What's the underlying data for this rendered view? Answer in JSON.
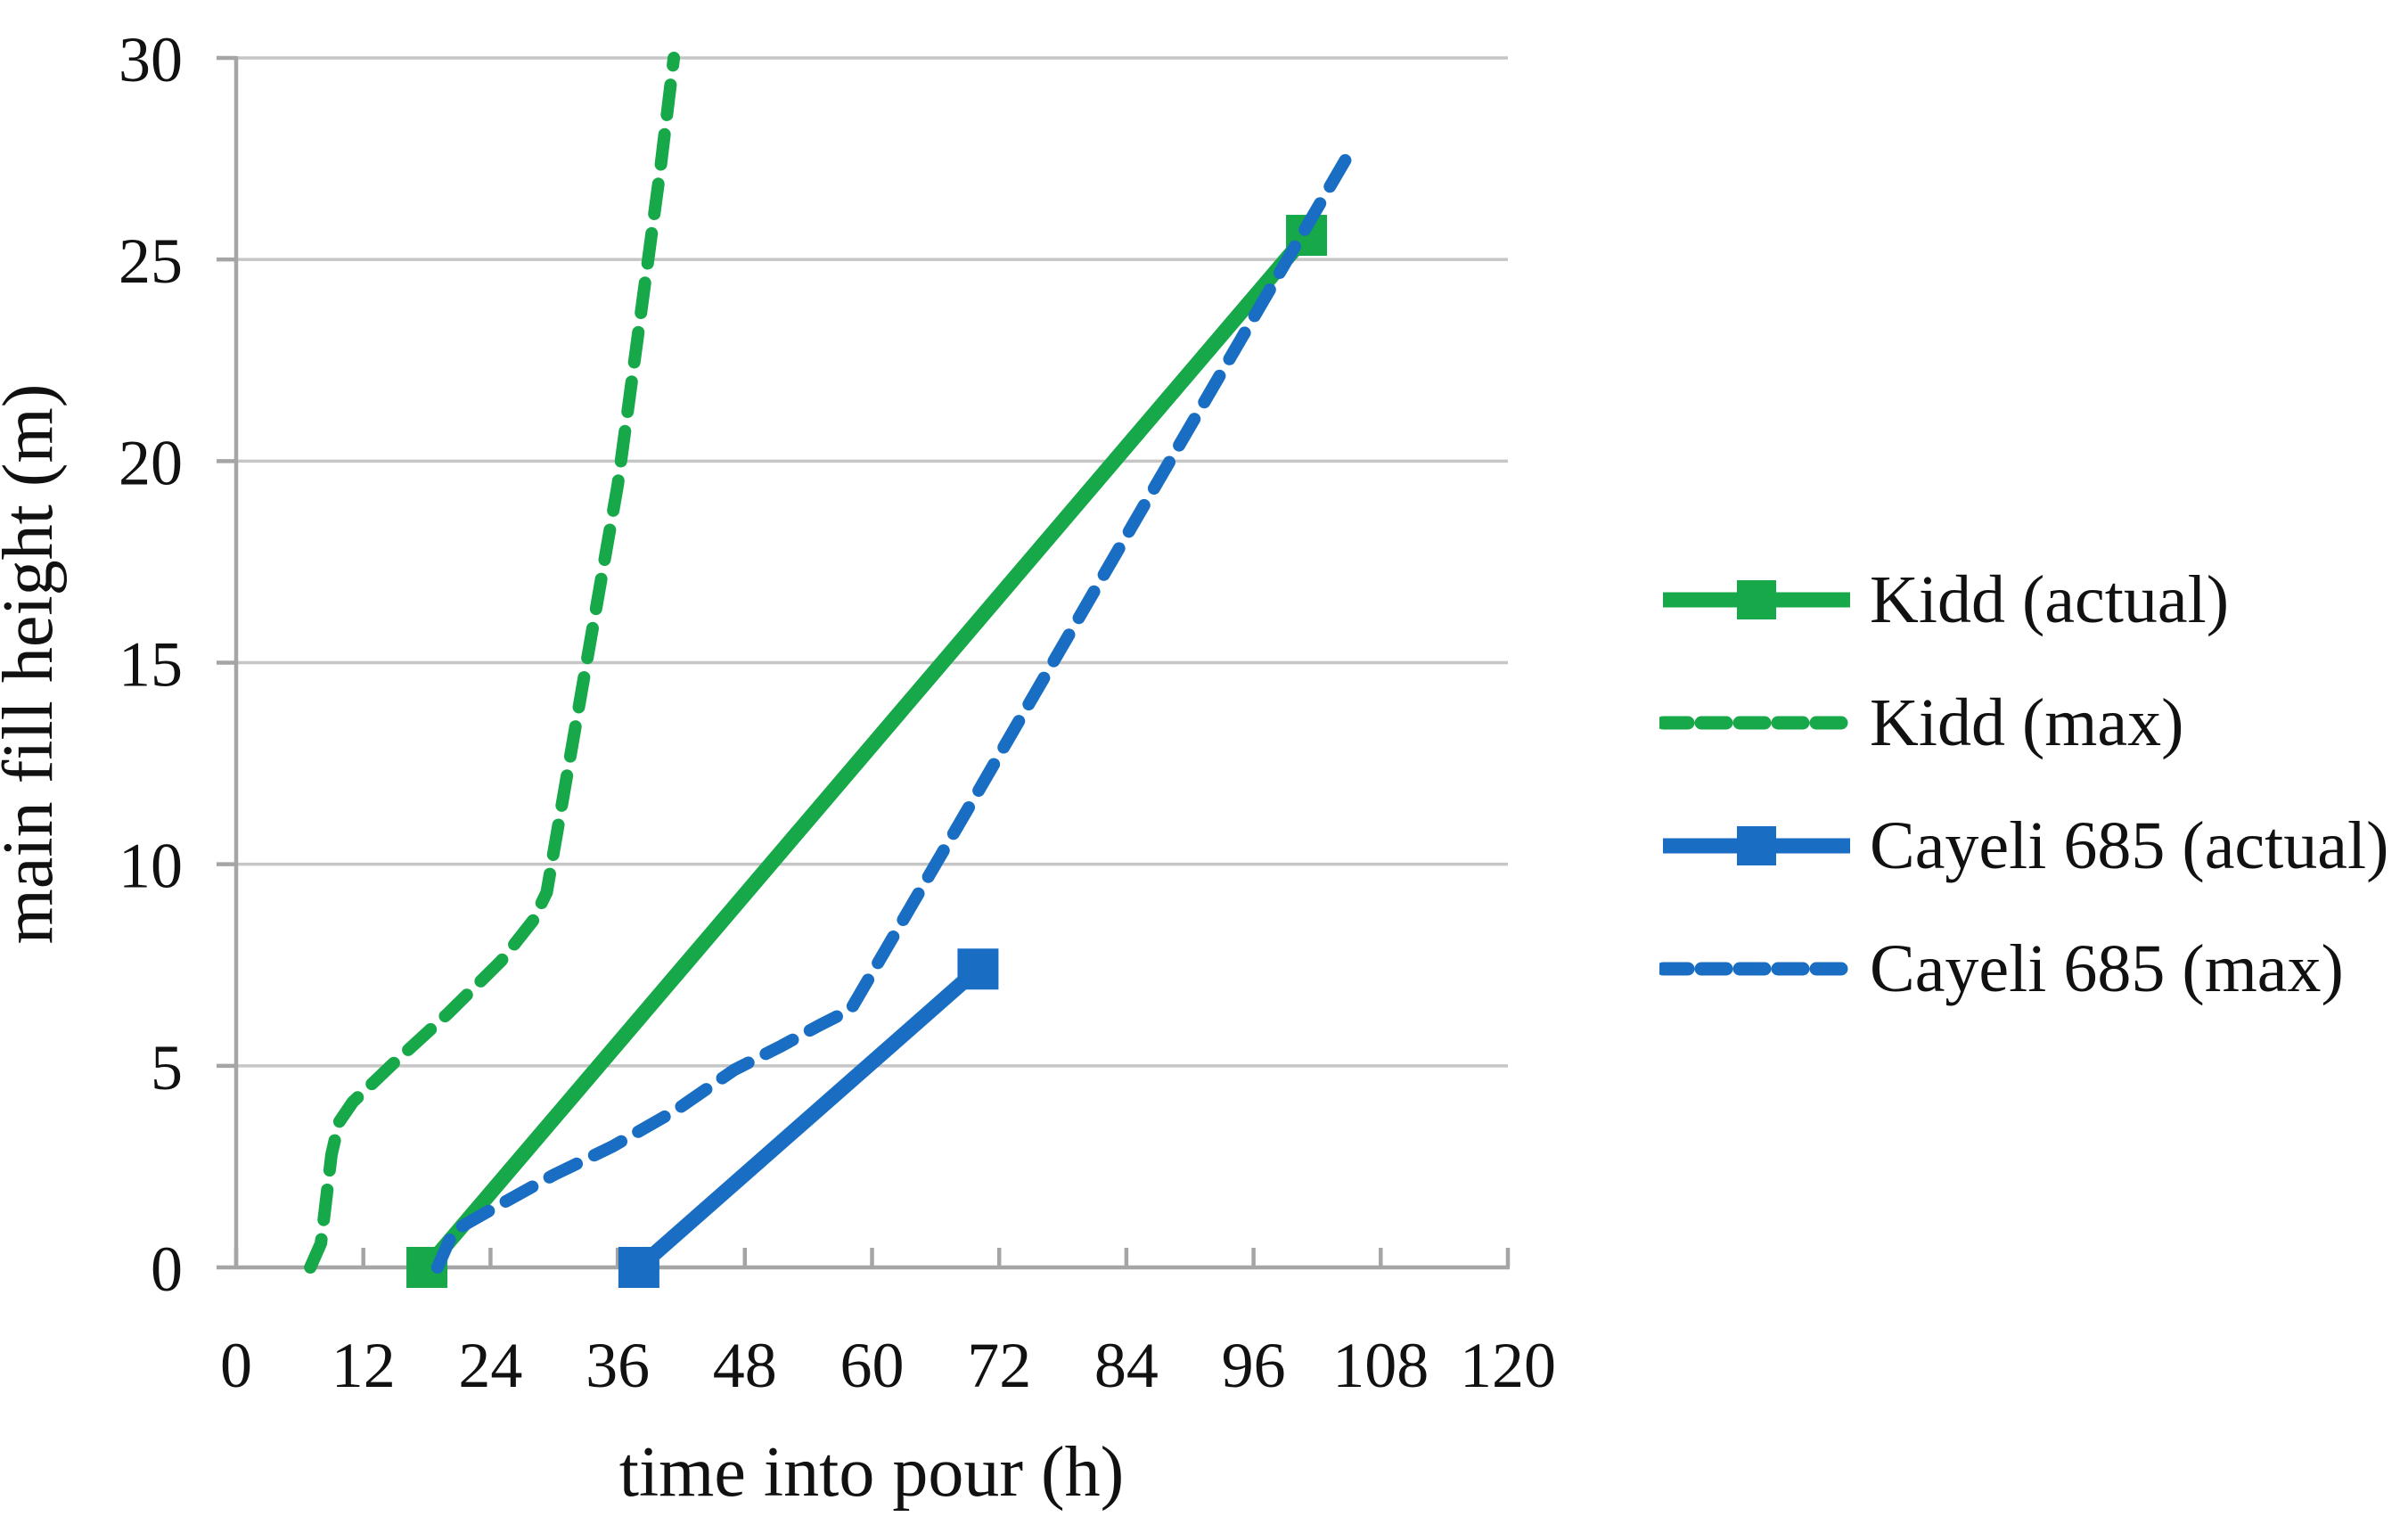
{
  "chart_data": {
    "type": "line",
    "xlabel": "time into pour (h)",
    "ylabel": "main fill height (m)",
    "xlim": [
      0,
      120
    ],
    "ylim": [
      0,
      30
    ],
    "xticks": [
      0,
      12,
      24,
      36,
      48,
      60,
      72,
      84,
      96,
      108,
      120
    ],
    "yticks": [
      0,
      5,
      10,
      15,
      20,
      25,
      30
    ],
    "grid": "horizontal",
    "legend_position": "right",
    "series": [
      {
        "name": "Kidd (actual)",
        "color": "#16a849",
        "style": "solid",
        "marker": "square",
        "points": [
          [
            18,
            0
          ],
          [
            101,
            25.6
          ]
        ]
      },
      {
        "name": "Kidd (max)",
        "color": "#16a849",
        "style": "dashed",
        "marker": "none",
        "points": [
          [
            7,
            0
          ],
          [
            8,
            0.6
          ],
          [
            9,
            2.8
          ],
          [
            9.7,
            3.6
          ],
          [
            11,
            4.1
          ],
          [
            15,
            5.1
          ],
          [
            20,
            6.3
          ],
          [
            25,
            7.6
          ],
          [
            28,
            8.6
          ],
          [
            29.3,
            9.3
          ],
          [
            33,
            14.9
          ],
          [
            36,
            19.4
          ],
          [
            40,
            27.2
          ],
          [
            41.3,
            30
          ]
        ]
      },
      {
        "name": "Cayeli 685 (actual)",
        "color": "#196ec3",
        "style": "solid",
        "marker": "square",
        "points": [
          [
            38,
            0
          ],
          [
            70,
            7.4
          ]
        ]
      },
      {
        "name": "Cayeli 685 (max)",
        "color": "#196ec3",
        "style": "dashed",
        "marker": "none",
        "points": [
          [
            19,
            0
          ],
          [
            20.5,
            0.9
          ],
          [
            24.5,
            1.5
          ],
          [
            30,
            2.3
          ],
          [
            35.5,
            3.0
          ],
          [
            41.5,
            3.9
          ],
          [
            47,
            4.9
          ],
          [
            51.5,
            5.5
          ],
          [
            55,
            6.0
          ],
          [
            58,
            6.4
          ],
          [
            70,
            11.8
          ],
          [
            85,
            18.6
          ],
          [
            105.4,
            27.8
          ]
        ]
      }
    ],
    "colors": {
      "gridline": "#c6c6c6",
      "axis": "#a5a5a5",
      "text": "#111111"
    }
  }
}
